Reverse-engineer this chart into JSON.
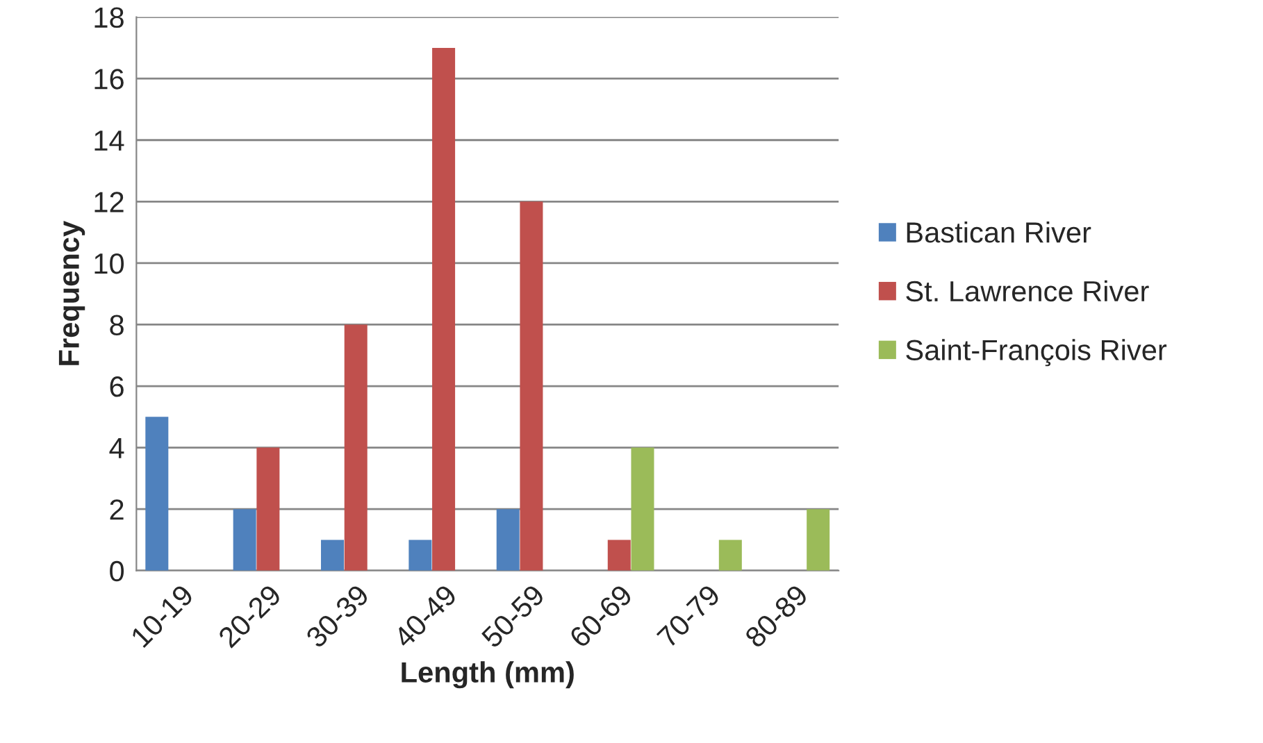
{
  "chart_data": {
    "type": "bar",
    "xlabel": "Length (mm)",
    "ylabel": "Frequency",
    "categories": [
      "10-19",
      "20-29",
      "30-39",
      "40-49",
      "50-59",
      "60-69",
      "70-79",
      "80-89"
    ],
    "series": [
      {
        "name": "Bastican River",
        "color": "#4f81bd",
        "values": [
          5,
          2,
          1,
          1,
          2,
          0,
          0,
          0
        ]
      },
      {
        "name": "St. Lawrence River",
        "color": "#c0504d",
        "values": [
          0,
          4,
          8,
          17,
          12,
          1,
          0,
          0
        ]
      },
      {
        "name": "Saint-François River",
        "color": "#9bbb59",
        "values": [
          0,
          0,
          0,
          0,
          0,
          4,
          1,
          2
        ]
      }
    ],
    "ylim": [
      0,
      18
    ],
    "yticks": [
      0,
      2,
      4,
      6,
      8,
      10,
      12,
      14,
      16,
      18
    ],
    "grid": "y",
    "legend": "right"
  }
}
